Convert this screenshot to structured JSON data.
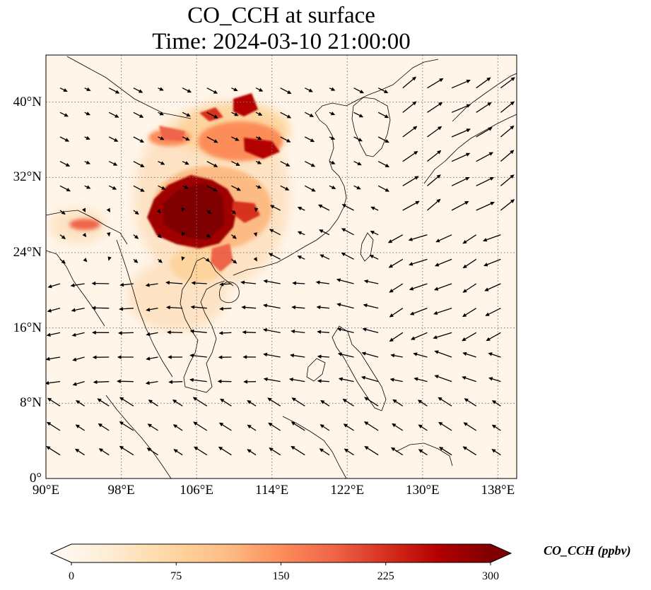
{
  "title": {
    "line1": "CO_CCH at surface",
    "line2": "Time: 2024-03-10 21:00:00"
  },
  "map": {
    "extent": {
      "lon_min": 90,
      "lon_max": 140,
      "lat_min": 0,
      "lat_max": 45
    },
    "gridlines": "dotted",
    "lat_ticks": [
      {
        "value": 0,
        "label": "0°"
      },
      {
        "value": 8,
        "label": "8°N"
      },
      {
        "value": 16,
        "label": "16°N"
      },
      {
        "value": 24,
        "label": "24°N"
      },
      {
        "value": 32,
        "label": "32°N"
      },
      {
        "value": 40,
        "label": "40°N"
      }
    ],
    "lon_ticks": [
      {
        "value": 90,
        "label": "90°E"
      },
      {
        "value": 98,
        "label": "98°E"
      },
      {
        "value": 106,
        "label": "106°E"
      },
      {
        "value": 114,
        "label": "114°E"
      },
      {
        "value": 122,
        "label": "122°E"
      },
      {
        "value": 130,
        "label": "130°E"
      },
      {
        "value": 138,
        "label": "138°E"
      }
    ],
    "wind_vectors": "black arrows on regular grid"
  },
  "colorbar": {
    "label": "CO_CCH (ppbv)",
    "colormap": "OrRd",
    "min": 0,
    "max": 300,
    "extend": "both",
    "colors": [
      "#fff7ec",
      "#fee8c8",
      "#fdd49e",
      "#fdbb84",
      "#fc8d59",
      "#ef6548",
      "#d7301f",
      "#b30000",
      "#7f0000"
    ],
    "ticks": [
      {
        "value": 0,
        "label": "0"
      },
      {
        "value": 75,
        "label": "75"
      },
      {
        "value": 150,
        "label": "150"
      },
      {
        "value": 225,
        "label": "225"
      },
      {
        "value": 300,
        "label": "300"
      }
    ]
  }
}
